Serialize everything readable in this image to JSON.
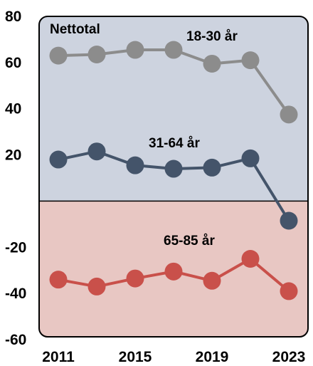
{
  "chart_data": {
    "type": "line",
    "title": "Nettotal",
    "x": [
      "2011",
      "2013",
      "2015",
      "2017",
      "2019",
      "2021",
      "2023"
    ],
    "x_tick_labels": [
      "2011",
      "2015",
      "2019",
      "2023"
    ],
    "ylim": [
      -60,
      80
    ],
    "y_ticks": [
      80,
      60,
      40,
      20,
      -20,
      -40,
      -60
    ],
    "y_tick_labels": [
      "80",
      "60",
      "40",
      "20",
      "-20",
      "-40",
      "-60"
    ],
    "grid": false,
    "background_bands": [
      {
        "from": 0,
        "to": 80,
        "color": "#cdd3df"
      },
      {
        "from": -60,
        "to": 0,
        "color": "#e8c7c3"
      }
    ],
    "series": [
      {
        "name": "18-30 år",
        "color": "#8c8c8c",
        "values": [
          63,
          63.5,
          65.5,
          65.5,
          59.5,
          61,
          37.5
        ]
      },
      {
        "name": "31-64 år",
        "color": "#44546a",
        "values": [
          18,
          21.5,
          15.5,
          14,
          14.5,
          18.5,
          -8.5
        ]
      },
      {
        "name": "65-85 år",
        "color": "#c9504a",
        "values": [
          -34,
          -37,
          -33.5,
          -30.5,
          -34.5,
          -25,
          -39
        ]
      }
    ]
  }
}
